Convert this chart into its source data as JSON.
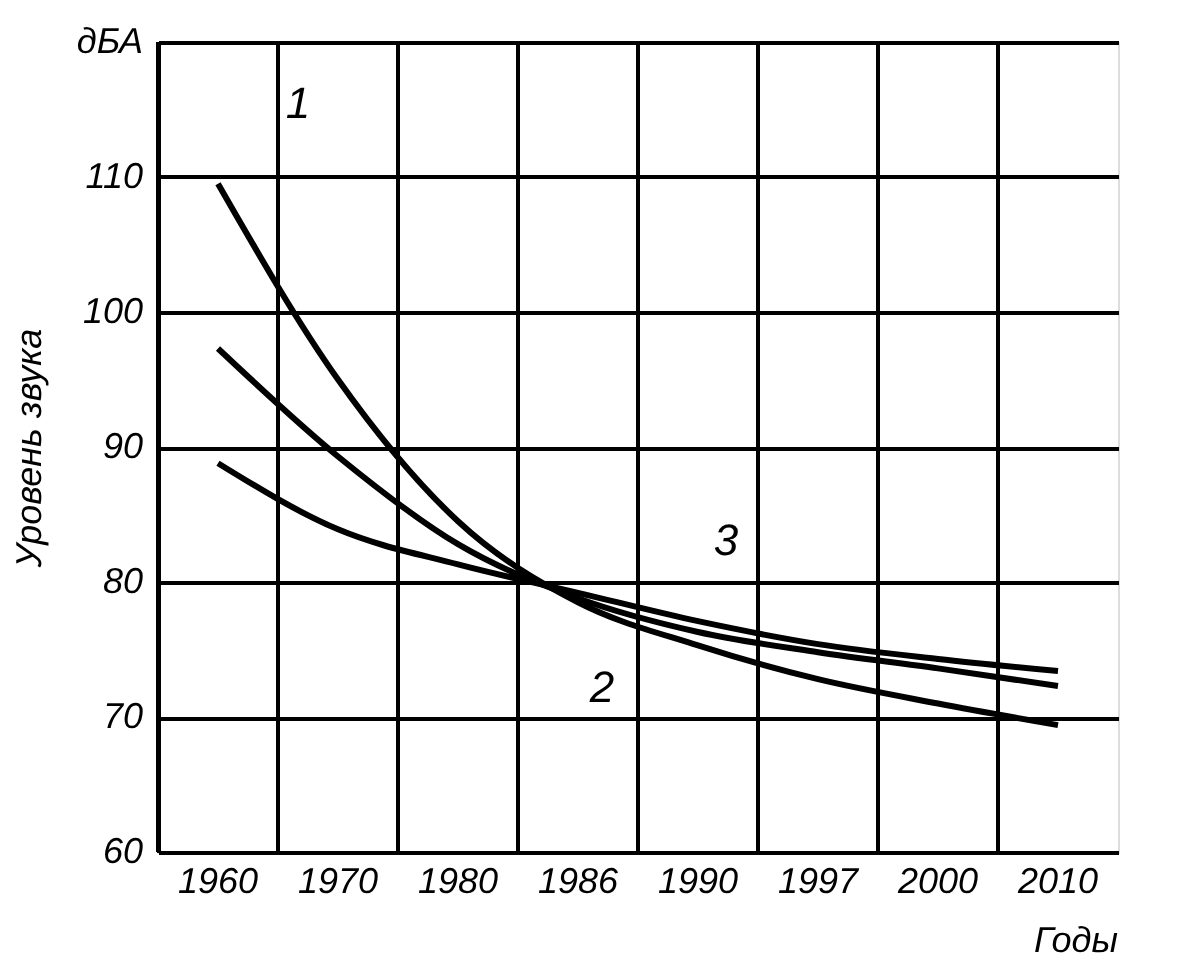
{
  "chart_data": {
    "type": "line",
    "ylabel": "Уровень звука",
    "xlabel": "Годы",
    "categories": [
      "1960",
      "1970",
      "1980",
      "1986",
      "1990",
      "1997",
      "2000",
      "2010"
    ],
    "ylim": [
      60,
      120
    ],
    "yticks": [
      60,
      70,
      80,
      90,
      100,
      110,
      {
        "value": 120,
        "label": "дБА"
      }
    ],
    "grid": true,
    "marker": "none",
    "line_style": "solid",
    "series": [
      {
        "name": "1",
        "color": "#000000",
        "values": [
          109.5,
          95,
          84.5,
          78.5,
          75.3,
          72.8,
          71,
          69.4
        ]
      },
      {
        "name": "2",
        "color": "#000000",
        "values": [
          97.3,
          89.3,
          82.8,
          78.8,
          76.3,
          74.8,
          73.6,
          72.3
        ]
      },
      {
        "name": "3",
        "color": "#000000",
        "values": [
          88.8,
          83.9,
          81.3,
          79.2,
          77.1,
          75.4,
          74.3,
          73.4
        ]
      }
    ]
  }
}
